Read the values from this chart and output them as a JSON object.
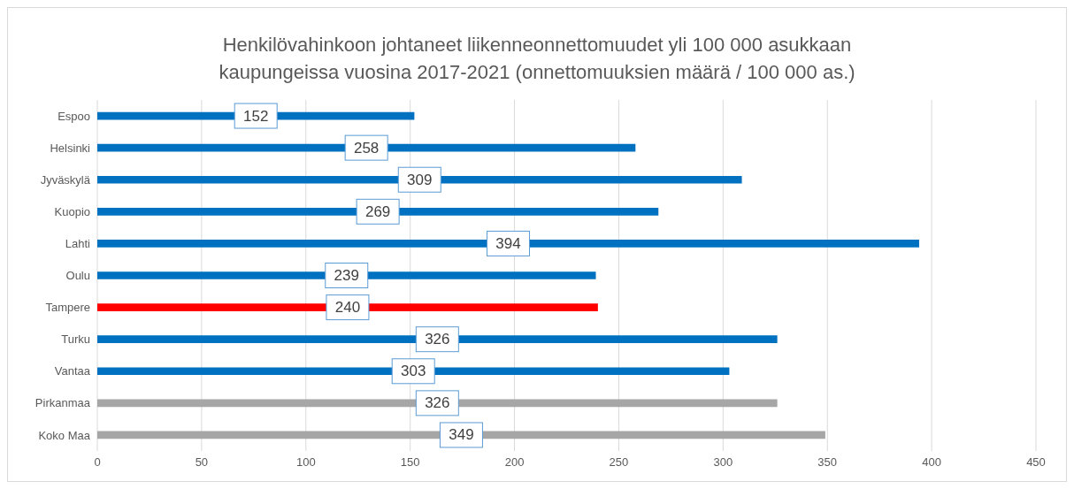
{
  "chart_data": {
    "type": "bar",
    "orientation": "horizontal",
    "title": "Henkilövahinkoon johtaneet liikenneonnettomuudet yli 100 000 asukkaan\nkaupungeissa vuosina 2017-2021 (onnettomuuksien määrä / 100 000 as.)",
    "categories": [
      "Espoo",
      "Helsinki",
      "Jyväskylä",
      "Kuopio",
      "Lahti",
      "Oulu",
      "Tampere",
      "Turku",
      "Vantaa",
      "Pirkanmaa",
      "Koko Maa"
    ],
    "values": [
      152,
      258,
      309,
      269,
      394,
      239,
      240,
      326,
      303,
      326,
      349
    ],
    "colors": [
      "#0070c0",
      "#0070c0",
      "#0070c0",
      "#0070c0",
      "#0070c0",
      "#0070c0",
      "#ff0000",
      "#0070c0",
      "#0070c0",
      "#a6a6a6",
      "#a6a6a6"
    ],
    "xlim": [
      0,
      450
    ],
    "xticks": [
      0,
      50,
      100,
      150,
      200,
      250,
      300,
      350,
      400,
      450
    ],
    "grid": "x",
    "data_labels": true
  }
}
